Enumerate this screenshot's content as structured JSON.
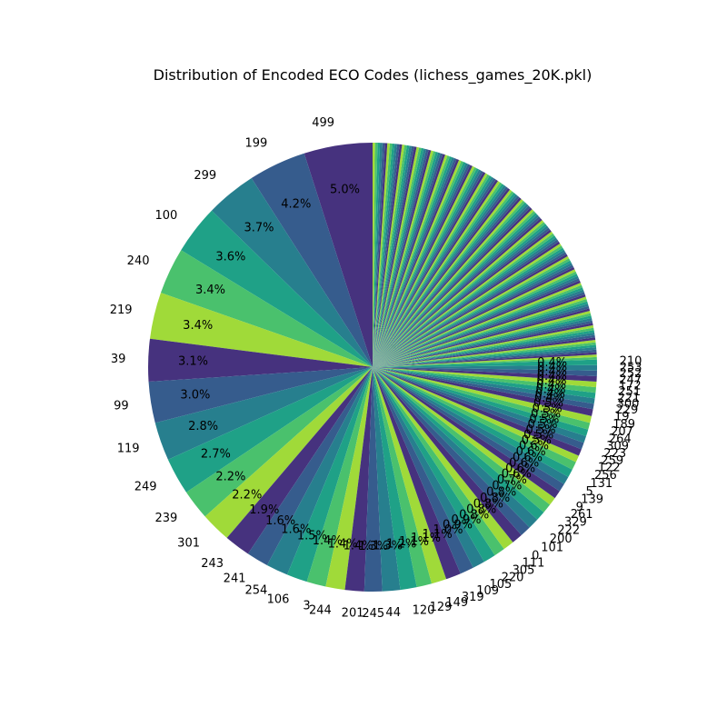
{
  "chart_data": {
    "type": "pie",
    "title": "Distribution of Encoded ECO Codes (lichess_games_20K.pkl)",
    "start_angle_deg": 90,
    "direction": "counterclockwise",
    "palette": [
      "#46327e",
      "#365c8d",
      "#277f8e",
      "#1fa187",
      "#4ac16d",
      "#a0da39"
    ],
    "slices": [
      {
        "label": "499",
        "value": 5.0
      },
      {
        "label": "199",
        "value": 4.2
      },
      {
        "label": "299",
        "value": 3.7
      },
      {
        "label": "100",
        "value": 3.6
      },
      {
        "label": "240",
        "value": 3.4
      },
      {
        "label": "219",
        "value": 3.4
      },
      {
        "label": "39",
        "value": 3.1
      },
      {
        "label": "99",
        "value": 3.0
      },
      {
        "label": "119",
        "value": 2.8
      },
      {
        "label": "249",
        "value": 2.7
      },
      {
        "label": "239",
        "value": 2.2
      },
      {
        "label": "301",
        "value": 2.2
      },
      {
        "label": "243",
        "value": 1.9
      },
      {
        "label": "241",
        "value": 1.6
      },
      {
        "label": "254",
        "value": 1.6
      },
      {
        "label": "106",
        "value": 1.5
      },
      {
        "label": "3",
        "value": 1.4
      },
      {
        "label": "244",
        "value": 1.4
      },
      {
        "label": "201",
        "value": 1.4
      },
      {
        "label": "245",
        "value": 1.3
      },
      {
        "label": "44",
        "value": 1.3
      },
      {
        "label": "120",
        "value": 1.2
      },
      {
        "label": "129",
        "value": 1.1
      },
      {
        "label": "149",
        "value": 1.1
      },
      {
        "label": "319",
        "value": 1.1
      },
      {
        "label": "109",
        "value": 1.0
      },
      {
        "label": "105",
        "value": 0.9
      },
      {
        "label": "220",
        "value": 0.9
      },
      {
        "label": "305",
        "value": 0.8
      },
      {
        "label": "111",
        "value": 0.8
      },
      {
        "label": "0",
        "value": 0.8
      },
      {
        "label": "101",
        "value": 0.8
      },
      {
        "label": "200",
        "value": 0.8
      },
      {
        "label": "222",
        "value": 0.7
      },
      {
        "label": "329",
        "value": 0.7
      },
      {
        "label": "261",
        "value": 0.6
      },
      {
        "label": "9",
        "value": 0.6
      },
      {
        "label": "139",
        "value": 0.6
      },
      {
        "label": "5",
        "value": 0.6
      },
      {
        "label": "131",
        "value": 0.6
      },
      {
        "label": "256",
        "value": 0.6
      },
      {
        "label": "122",
        "value": 0.5
      },
      {
        "label": "259",
        "value": 0.5
      },
      {
        "label": "223",
        "value": 0.5
      },
      {
        "label": "309",
        "value": 0.5
      },
      {
        "label": "264",
        "value": 0.5
      },
      {
        "label": "207",
        "value": 0.5
      },
      {
        "label": "189",
        "value": 0.5
      },
      {
        "label": "19",
        "value": 0.5
      },
      {
        "label": "229",
        "value": 0.4
      },
      {
        "label": "300",
        "value": 0.4
      },
      {
        "label": "221",
        "value": 0.4
      },
      {
        "label": "251",
        "value": 0.4
      },
      {
        "label": "172",
        "value": 0.4
      },
      {
        "label": "247",
        "value": 0.4
      },
      {
        "label": "252",
        "value": 0.4
      },
      {
        "label": "253",
        "value": 0.4
      },
      {
        "label": "210",
        "value": 0.4
      }
    ],
    "other_slices_count": 140,
    "other_slices_total": 24.8
  }
}
